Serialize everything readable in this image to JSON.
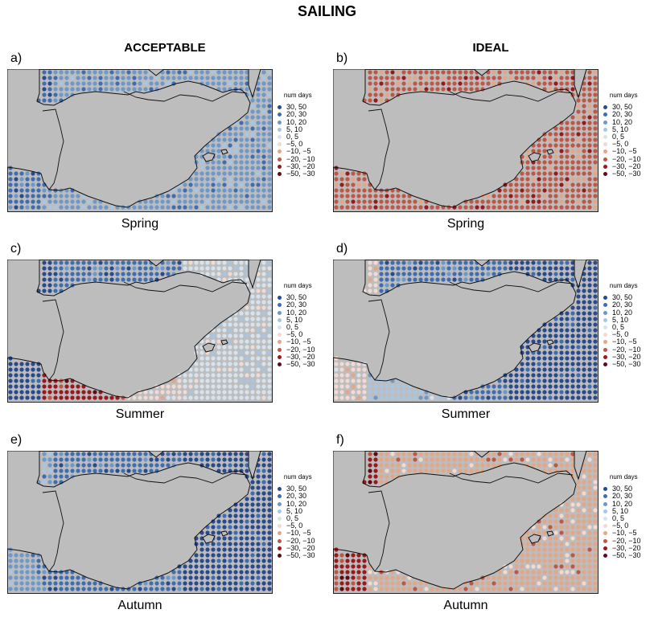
{
  "title": "SAILING",
  "columns": [
    "ACCEPTABLE",
    "IDEAL"
  ],
  "legend": {
    "title": "num days",
    "items": [
      {
        "label": "30, 50",
        "color": "#2a4a8e"
      },
      {
        "label": "20, 30",
        "color": "#3f6db3"
      },
      {
        "label": "10, 20",
        "color": "#6c98cb"
      },
      {
        "label": "5, 10",
        "color": "#a8c6e3"
      },
      {
        "label": "0, 5",
        "color": "#d6e3ee"
      },
      {
        "label": "−5, 0",
        "color": "#f1d9d4"
      },
      {
        "label": "−10, −5",
        "color": "#e3a688"
      },
      {
        "label": "−20, −10",
        "color": "#bf5646"
      },
      {
        "label": "−30, −20",
        "color": "#99191f"
      },
      {
        "label": "−50, −30",
        "color": "#5e0a1a"
      }
    ]
  },
  "colors": {
    "land": "#bdbdbd",
    "coast": "#111111"
  },
  "panels": [
    {
      "letter": "a)",
      "season": "Spring",
      "column": "ACCEPTABLE",
      "levels": {
        "atlantic": 1,
        "medSW": 2,
        "medE": 2,
        "gulf": 2,
        "base": 2
      }
    },
    {
      "letter": "b)",
      "season": "Spring",
      "column": "IDEAL",
      "levels": {
        "atlantic": 7,
        "medSW": 7,
        "medE": 7,
        "gulf": 7,
        "base": 7
      }
    },
    {
      "letter": "c)",
      "season": "Summer",
      "column": "ACCEPTABLE",
      "levels": {
        "atlantic": 0,
        "medSW": 5,
        "medE": 4,
        "gulf": 8,
        "base": 1
      }
    },
    {
      "letter": "d)",
      "season": "Summer",
      "column": "IDEAL",
      "levels": {
        "atlantic": 5,
        "medSW": 1,
        "medE": 0,
        "gulf": 3,
        "base": 1
      }
    },
    {
      "letter": "e)",
      "season": "Autumn",
      "column": "ACCEPTABLE",
      "levels": {
        "atlantic": 2,
        "medSW": 1,
        "medE": 0,
        "gulf": 1,
        "base": 1
      }
    },
    {
      "letter": "f)",
      "season": "Autumn",
      "column": "IDEAL",
      "levels": {
        "atlantic": 8,
        "medSW": 6,
        "medE": 6,
        "gulf": 6,
        "base": 6
      }
    }
  ]
}
